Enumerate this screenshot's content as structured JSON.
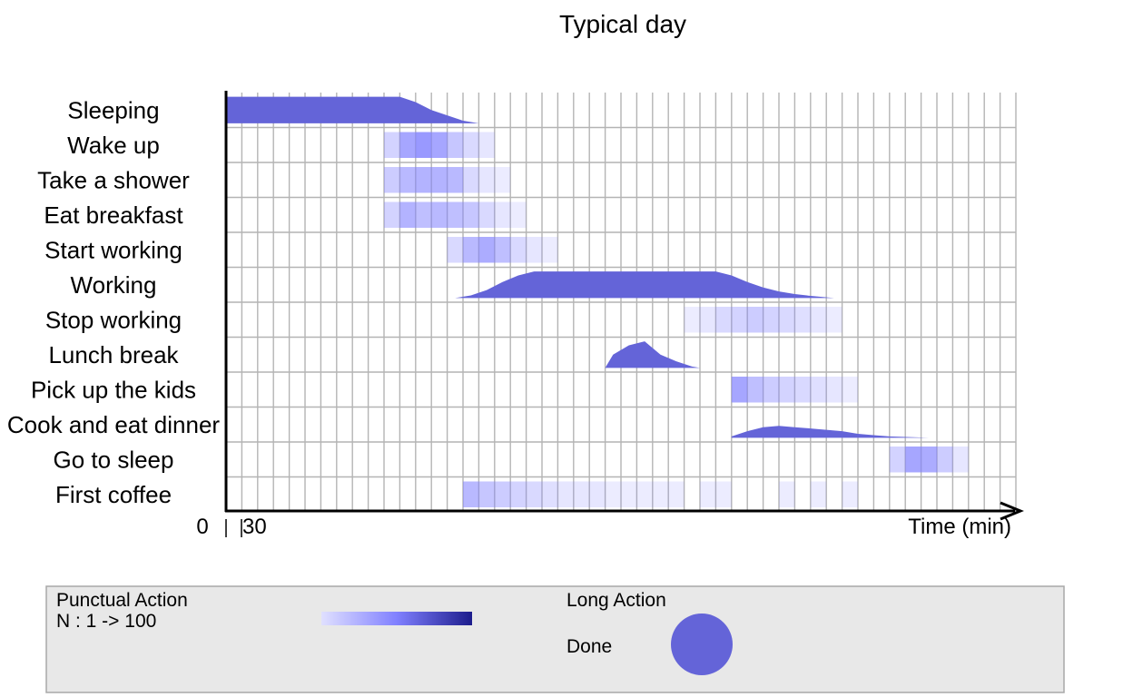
{
  "chart_data": {
    "type": "timeline",
    "title": "Typical day",
    "xlabel": "Time (min)",
    "x_ticks": [
      "0",
      "30"
    ],
    "activities": [
      "Sleeping",
      "Wake up",
      "Take a shower",
      "Eat breakfast",
      "Start working",
      "Working",
      "Stop working",
      "Lunch break",
      "Pick up the kids",
      "Cook and eat dinner",
      "Go to sleep",
      "First coffee"
    ],
    "punctual_actions": [
      {
        "activity": "Wake up",
        "cells": [
          [
            10,
            0.35
          ],
          [
            11,
            0.7
          ],
          [
            12,
            0.8
          ],
          [
            13,
            0.7
          ],
          [
            14,
            0.45
          ],
          [
            15,
            0.3
          ],
          [
            16,
            0.2
          ]
        ]
      },
      {
        "activity": "Take a shower",
        "cells": [
          [
            10,
            0.4
          ],
          [
            11,
            0.55
          ],
          [
            12,
            0.6
          ],
          [
            13,
            0.6
          ],
          [
            14,
            0.55
          ],
          [
            15,
            0.3
          ],
          [
            16,
            0.2
          ],
          [
            17,
            0.15
          ]
        ]
      },
      {
        "activity": "Eat breakfast",
        "cells": [
          [
            10,
            0.35
          ],
          [
            11,
            0.6
          ],
          [
            12,
            0.5
          ],
          [
            13,
            0.55
          ],
          [
            14,
            0.5
          ],
          [
            15,
            0.45
          ],
          [
            16,
            0.3
          ],
          [
            17,
            0.2
          ],
          [
            18,
            0.15
          ]
        ]
      },
      {
        "activity": "Start working",
        "cells": [
          [
            14,
            0.3
          ],
          [
            15,
            0.55
          ],
          [
            16,
            0.65
          ],
          [
            17,
            0.5
          ],
          [
            18,
            0.3
          ],
          [
            19,
            0.2
          ],
          [
            20,
            0.15
          ]
        ]
      },
      {
        "activity": "Stop working",
        "cells": [
          [
            29,
            0.15
          ],
          [
            30,
            0.2
          ],
          [
            31,
            0.3
          ],
          [
            32,
            0.35
          ],
          [
            33,
            0.4
          ],
          [
            34,
            0.35
          ],
          [
            35,
            0.3
          ],
          [
            36,
            0.25
          ],
          [
            37,
            0.2
          ],
          [
            38,
            0.15
          ]
        ]
      },
      {
        "activity": "Pick up the kids",
        "cells": [
          [
            32,
            0.7
          ],
          [
            33,
            0.5
          ],
          [
            34,
            0.4
          ],
          [
            35,
            0.35
          ],
          [
            36,
            0.3
          ],
          [
            37,
            0.25
          ],
          [
            38,
            0.2
          ],
          [
            39,
            0.15
          ]
        ]
      },
      {
        "activity": "Go to sleep",
        "cells": [
          [
            42,
            0.35
          ],
          [
            43,
            0.7
          ],
          [
            44,
            0.65
          ],
          [
            45,
            0.4
          ],
          [
            46,
            0.2
          ]
        ]
      },
      {
        "activity": "First coffee",
        "cells": [
          [
            15,
            0.55
          ],
          [
            16,
            0.45
          ],
          [
            17,
            0.4
          ],
          [
            18,
            0.35
          ],
          [
            19,
            0.3
          ],
          [
            20,
            0.25
          ],
          [
            21,
            0.2
          ],
          [
            22,
            0.2
          ],
          [
            23,
            0.2
          ],
          [
            24,
            0.15
          ],
          [
            25,
            0.15
          ],
          [
            26,
            0.15
          ],
          [
            27,
            0.15
          ],
          [
            28,
            0.15
          ],
          [
            30,
            0.15
          ],
          [
            31,
            0.15
          ],
          [
            35,
            0.15
          ],
          [
            37,
            0.15
          ],
          [
            39,
            0.15
          ]
        ]
      }
    ],
    "long_actions": [
      {
        "activity": "Sleeping",
        "profile": [
          [
            0,
            1
          ],
          [
            11,
            1
          ],
          [
            12,
            0.8
          ],
          [
            13,
            0.5
          ],
          [
            14,
            0.3
          ],
          [
            15,
            0.1
          ],
          [
            16,
            0
          ]
        ]
      },
      {
        "activity": "Working",
        "profile": [
          [
            14.5,
            0
          ],
          [
            15.5,
            0.1
          ],
          [
            16.5,
            0.3
          ],
          [
            17.5,
            0.6
          ],
          [
            18.5,
            0.85
          ],
          [
            19.5,
            1
          ],
          [
            31,
            1
          ],
          [
            32,
            0.85
          ],
          [
            33,
            0.6
          ],
          [
            34,
            0.4
          ],
          [
            35,
            0.25
          ],
          [
            36,
            0.15
          ],
          [
            37,
            0.08
          ],
          [
            38.5,
            0
          ]
        ]
      },
      {
        "activity": "Lunch break",
        "profile": [
          [
            24,
            0
          ],
          [
            24.5,
            0.5
          ],
          [
            25.5,
            0.85
          ],
          [
            26.5,
            1
          ],
          [
            27.5,
            0.5
          ],
          [
            28.5,
            0.25
          ],
          [
            29.5,
            0.05
          ],
          [
            30,
            0
          ]
        ]
      },
      {
        "activity": "Cook and eat dinner",
        "profile": [
          [
            32,
            0.05
          ],
          [
            33,
            0.25
          ],
          [
            34,
            0.4
          ],
          [
            35,
            0.45
          ],
          [
            36,
            0.4
          ],
          [
            37,
            0.35
          ],
          [
            38,
            0.3
          ],
          [
            39,
            0.25
          ],
          [
            40,
            0.15
          ],
          [
            41,
            0.1
          ],
          [
            42,
            0.05
          ],
          [
            44.5,
            0
          ]
        ]
      }
    ],
    "legend": {
      "punctual_label": "Punctual Action",
      "punctual_range": "N : 1 -> 100",
      "long_label": "Long Action",
      "done_label": "Done"
    },
    "colors": {
      "long_action": "#6464d8",
      "punctual_low": "#e0e0ff",
      "punctual_mid": "#8080ff",
      "punctual_high": "#1c1c8c",
      "grid": "#b4b4b4",
      "legend_bg": "#e8e8e8"
    }
  }
}
